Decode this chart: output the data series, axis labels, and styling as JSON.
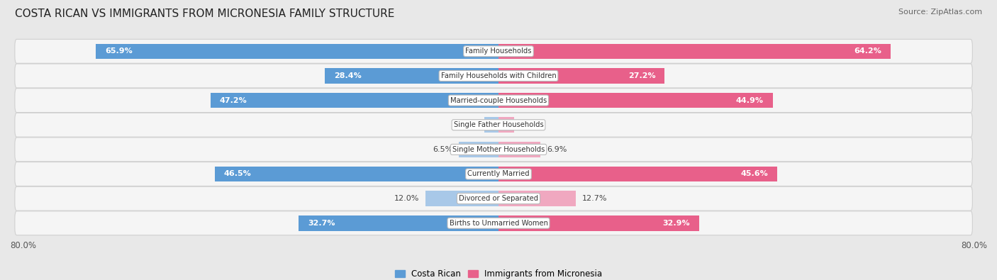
{
  "title": "COSTA RICAN VS IMMIGRANTS FROM MICRONESIA FAMILY STRUCTURE",
  "source": "Source: ZipAtlas.com",
  "categories": [
    "Family Households",
    "Family Households with Children",
    "Married-couple Households",
    "Single Father Households",
    "Single Mother Households",
    "Currently Married",
    "Divorced or Separated",
    "Births to Unmarried Women"
  ],
  "costa_rican": [
    65.9,
    28.4,
    47.2,
    2.3,
    6.5,
    46.5,
    12.0,
    32.7
  ],
  "micronesia": [
    64.2,
    27.2,
    44.9,
    2.6,
    6.9,
    45.6,
    12.7,
    32.9
  ],
  "costa_rican_color_large": "#5b9bd5",
  "costa_rican_color_small": "#a8c8e8",
  "micronesia_color_large": "#e8608a",
  "micronesia_color_small": "#f0a8c0",
  "axis_max": 80.0,
  "axis_label_left": "80.0%",
  "axis_label_right": "80.0%",
  "legend_label_left": "Costa Rican",
  "legend_label_right": "Immigrants from Micronesia",
  "background_color": "#e8e8e8",
  "row_bg_color": "#f5f5f5",
  "row_border_color": "#d0d0d0",
  "title_fontsize": 11,
  "source_fontsize": 8,
  "bar_height": 0.62,
  "large_threshold": 20.0,
  "label_inside_color": "#ffffff",
  "label_outside_color": "#444444"
}
